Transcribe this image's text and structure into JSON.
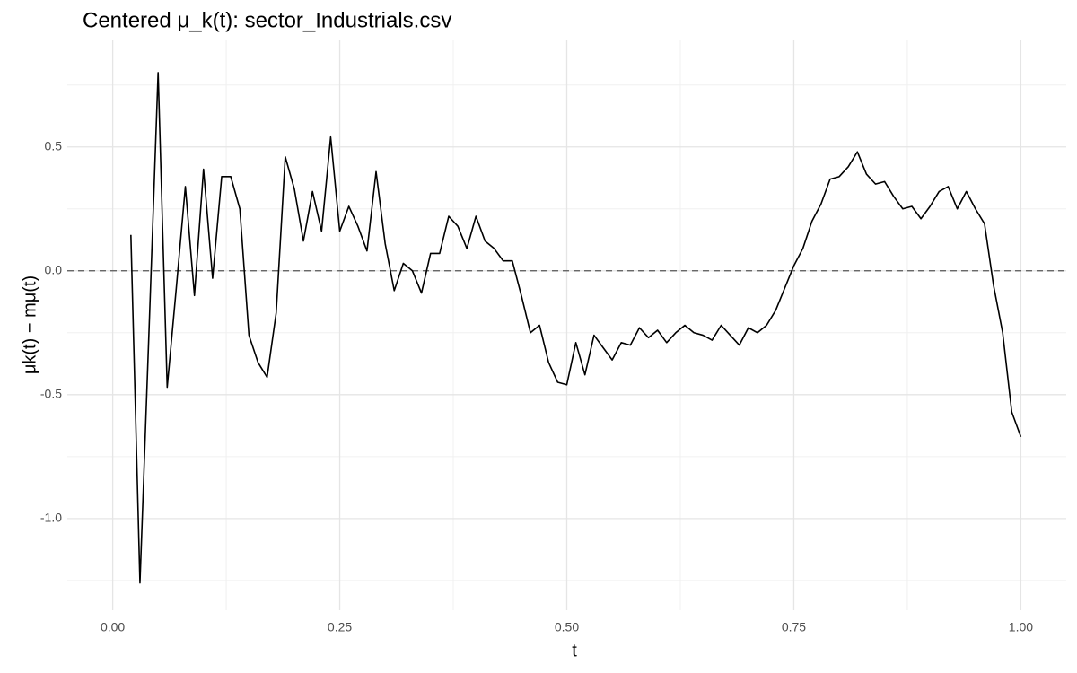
{
  "chart_data": {
    "type": "line",
    "title": "Centered μ_k(t): sector_Industrials.csv",
    "x_label": "t",
    "y_label": "μk(t) − mμ(t)",
    "x": [
      0.02,
      0.03,
      0.04,
      0.05,
      0.06,
      0.07,
      0.08,
      0.09,
      0.1,
      0.11,
      0.12,
      0.13,
      0.14,
      0.15,
      0.16,
      0.17,
      0.18,
      0.19,
      0.2,
      0.21,
      0.22,
      0.23,
      0.24,
      0.25,
      0.26,
      0.27,
      0.28,
      0.29,
      0.3,
      0.31,
      0.32,
      0.33,
      0.34,
      0.35,
      0.36,
      0.37,
      0.38,
      0.39,
      0.4,
      0.41,
      0.42,
      0.43,
      0.44,
      0.45,
      0.46,
      0.47,
      0.48,
      0.49,
      0.5,
      0.51,
      0.52,
      0.53,
      0.54,
      0.55,
      0.56,
      0.57,
      0.58,
      0.59,
      0.6,
      0.61,
      0.62,
      0.63,
      0.64,
      0.65,
      0.66,
      0.67,
      0.68,
      0.69,
      0.7,
      0.71,
      0.72,
      0.73,
      0.74,
      0.75,
      0.76,
      0.77,
      0.78,
      0.79,
      0.8,
      0.81,
      0.82,
      0.83,
      0.84,
      0.85,
      0.86,
      0.87,
      0.88,
      0.89,
      0.9,
      0.91,
      0.92,
      0.93,
      0.94,
      0.95,
      0.96,
      0.97,
      0.98,
      0.99,
      1.0
    ],
    "series": [
      {
        "color": "#000000",
        "values": [
          0.145,
          -1.26,
          -0.24,
          0.8,
          -0.47,
          -0.07,
          0.34,
          -0.1,
          0.41,
          -0.03,
          0.38,
          0.38,
          0.25,
          -0.26,
          -0.37,
          -0.43,
          -0.17,
          0.46,
          0.33,
          0.12,
          0.32,
          0.16,
          0.54,
          0.16,
          0.26,
          0.18,
          0.08,
          0.4,
          0.11,
          -0.08,
          0.03,
          0.0,
          -0.09,
          0.07,
          0.07,
          0.22,
          0.18,
          0.09,
          0.22,
          0.12,
          0.09,
          0.04,
          0.04,
          -0.1,
          -0.25,
          -0.22,
          -0.37,
          -0.45,
          -0.46,
          -0.29,
          -0.42,
          -0.26,
          -0.31,
          -0.36,
          -0.29,
          -0.3,
          -0.23,
          -0.27,
          -0.24,
          -0.29,
          -0.25,
          -0.22,
          -0.25,
          -0.26,
          -0.28,
          -0.22,
          -0.26,
          -0.3,
          -0.23,
          -0.25,
          -0.22,
          -0.16,
          -0.07,
          0.02,
          0.09,
          0.2,
          0.27,
          0.37,
          0.38,
          0.42,
          0.48,
          0.39,
          0.35,
          0.36,
          0.3,
          0.25,
          0.26,
          0.21,
          0.26,
          0.32,
          0.34,
          0.25,
          0.32,
          0.25,
          0.19,
          -0.06,
          -0.25,
          -0.57,
          -0.67
        ]
      }
    ],
    "hline": 0,
    "xlim": [
      -0.05,
      1.05
    ],
    "ylim": [
      -1.37,
      0.93
    ],
    "xticks": [
      {
        "value": 0,
        "label": "0.00"
      },
      0.25,
      {
        "value": 0.5,
        "label": "0.50"
      },
      0.75,
      {
        "value": 1,
        "label": "1.00"
      }
    ],
    "yticks": [
      {
        "value": -1,
        "label": "-1.0"
      },
      -0.5,
      {
        "value": 0,
        "label": "0.0"
      },
      0.5
    ],
    "grid": true
  }
}
